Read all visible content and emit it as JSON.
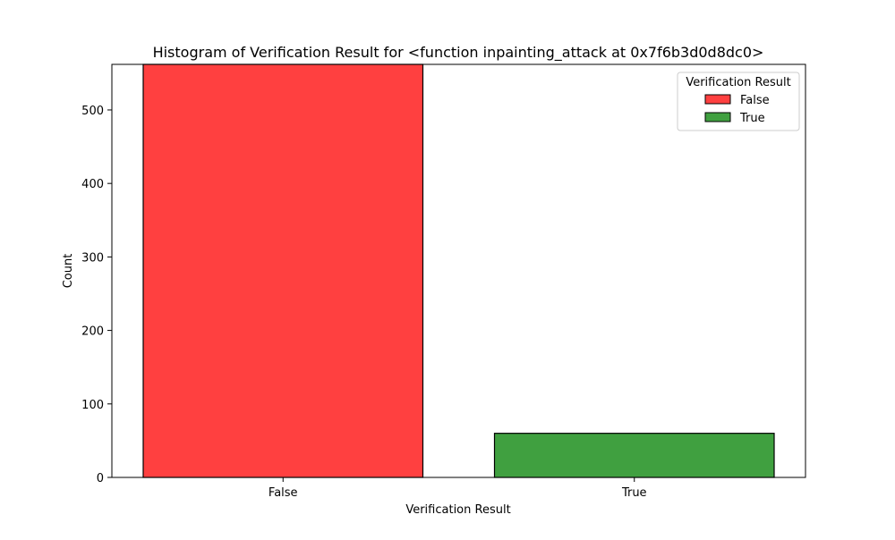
{
  "chart_data": {
    "type": "bar",
    "title": "Histogram of Verification Result for <function inpainting_attack at 0x7f6b3d0d8dc0>",
    "xlabel": "Verification Result",
    "ylabel": "Count",
    "categories": [
      "False",
      "True"
    ],
    "values": [
      562,
      60
    ],
    "colors": [
      "#ff4040",
      "#40a040"
    ],
    "ylim": [
      0,
      562
    ],
    "yticks": [
      0,
      100,
      200,
      300,
      400,
      500
    ],
    "grid": false,
    "legend": {
      "title": "Verification Result",
      "placement": "upper right",
      "entries": [
        "False",
        "True"
      ]
    }
  }
}
